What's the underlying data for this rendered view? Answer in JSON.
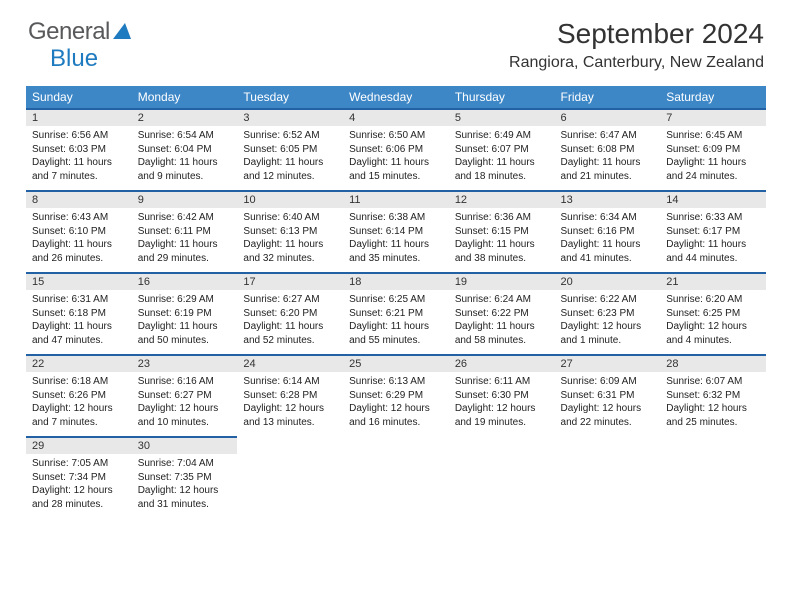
{
  "brand": {
    "part1": "General",
    "part2": "Blue"
  },
  "title": "September 2024",
  "location": "Rangiora, Canterbury, New Zealand",
  "colors": {
    "header_bg": "#3d87c7",
    "row_divider": "#2361a5",
    "daynum_bg": "#e8e8e8",
    "text": "#222222",
    "brand_gray": "#58595b",
    "brand_blue": "#1f7bbf"
  },
  "weekdays": [
    "Sunday",
    "Monday",
    "Tuesday",
    "Wednesday",
    "Thursday",
    "Friday",
    "Saturday"
  ],
  "weeks": [
    [
      {
        "n": "1",
        "sunrise": "6:56 AM",
        "sunset": "6:03 PM",
        "daylight": "11 hours and 7 minutes."
      },
      {
        "n": "2",
        "sunrise": "6:54 AM",
        "sunset": "6:04 PM",
        "daylight": "11 hours and 9 minutes."
      },
      {
        "n": "3",
        "sunrise": "6:52 AM",
        "sunset": "6:05 PM",
        "daylight": "11 hours and 12 minutes."
      },
      {
        "n": "4",
        "sunrise": "6:50 AM",
        "sunset": "6:06 PM",
        "daylight": "11 hours and 15 minutes."
      },
      {
        "n": "5",
        "sunrise": "6:49 AM",
        "sunset": "6:07 PM",
        "daylight": "11 hours and 18 minutes."
      },
      {
        "n": "6",
        "sunrise": "6:47 AM",
        "sunset": "6:08 PM",
        "daylight": "11 hours and 21 minutes."
      },
      {
        "n": "7",
        "sunrise": "6:45 AM",
        "sunset": "6:09 PM",
        "daylight": "11 hours and 24 minutes."
      }
    ],
    [
      {
        "n": "8",
        "sunrise": "6:43 AM",
        "sunset": "6:10 PM",
        "daylight": "11 hours and 26 minutes."
      },
      {
        "n": "9",
        "sunrise": "6:42 AM",
        "sunset": "6:11 PM",
        "daylight": "11 hours and 29 minutes."
      },
      {
        "n": "10",
        "sunrise": "6:40 AM",
        "sunset": "6:13 PM",
        "daylight": "11 hours and 32 minutes."
      },
      {
        "n": "11",
        "sunrise": "6:38 AM",
        "sunset": "6:14 PM",
        "daylight": "11 hours and 35 minutes."
      },
      {
        "n": "12",
        "sunrise": "6:36 AM",
        "sunset": "6:15 PM",
        "daylight": "11 hours and 38 minutes."
      },
      {
        "n": "13",
        "sunrise": "6:34 AM",
        "sunset": "6:16 PM",
        "daylight": "11 hours and 41 minutes."
      },
      {
        "n": "14",
        "sunrise": "6:33 AM",
        "sunset": "6:17 PM",
        "daylight": "11 hours and 44 minutes."
      }
    ],
    [
      {
        "n": "15",
        "sunrise": "6:31 AM",
        "sunset": "6:18 PM",
        "daylight": "11 hours and 47 minutes."
      },
      {
        "n": "16",
        "sunrise": "6:29 AM",
        "sunset": "6:19 PM",
        "daylight": "11 hours and 50 minutes."
      },
      {
        "n": "17",
        "sunrise": "6:27 AM",
        "sunset": "6:20 PM",
        "daylight": "11 hours and 52 minutes."
      },
      {
        "n": "18",
        "sunrise": "6:25 AM",
        "sunset": "6:21 PM",
        "daylight": "11 hours and 55 minutes."
      },
      {
        "n": "19",
        "sunrise": "6:24 AM",
        "sunset": "6:22 PM",
        "daylight": "11 hours and 58 minutes."
      },
      {
        "n": "20",
        "sunrise": "6:22 AM",
        "sunset": "6:23 PM",
        "daylight": "12 hours and 1 minute."
      },
      {
        "n": "21",
        "sunrise": "6:20 AM",
        "sunset": "6:25 PM",
        "daylight": "12 hours and 4 minutes."
      }
    ],
    [
      {
        "n": "22",
        "sunrise": "6:18 AM",
        "sunset": "6:26 PM",
        "daylight": "12 hours and 7 minutes."
      },
      {
        "n": "23",
        "sunrise": "6:16 AM",
        "sunset": "6:27 PM",
        "daylight": "12 hours and 10 minutes."
      },
      {
        "n": "24",
        "sunrise": "6:14 AM",
        "sunset": "6:28 PM",
        "daylight": "12 hours and 13 minutes."
      },
      {
        "n": "25",
        "sunrise": "6:13 AM",
        "sunset": "6:29 PM",
        "daylight": "12 hours and 16 minutes."
      },
      {
        "n": "26",
        "sunrise": "6:11 AM",
        "sunset": "6:30 PM",
        "daylight": "12 hours and 19 minutes."
      },
      {
        "n": "27",
        "sunrise": "6:09 AM",
        "sunset": "6:31 PM",
        "daylight": "12 hours and 22 minutes."
      },
      {
        "n": "28",
        "sunrise": "6:07 AM",
        "sunset": "6:32 PM",
        "daylight": "12 hours and 25 minutes."
      }
    ],
    [
      {
        "n": "29",
        "sunrise": "7:05 AM",
        "sunset": "7:34 PM",
        "daylight": "12 hours and 28 minutes."
      },
      {
        "n": "30",
        "sunrise": "7:04 AM",
        "sunset": "7:35 PM",
        "daylight": "12 hours and 31 minutes."
      },
      null,
      null,
      null,
      null,
      null
    ]
  ],
  "labels": {
    "sunrise": "Sunrise:",
    "sunset": "Sunset:",
    "daylight": "Daylight:"
  }
}
